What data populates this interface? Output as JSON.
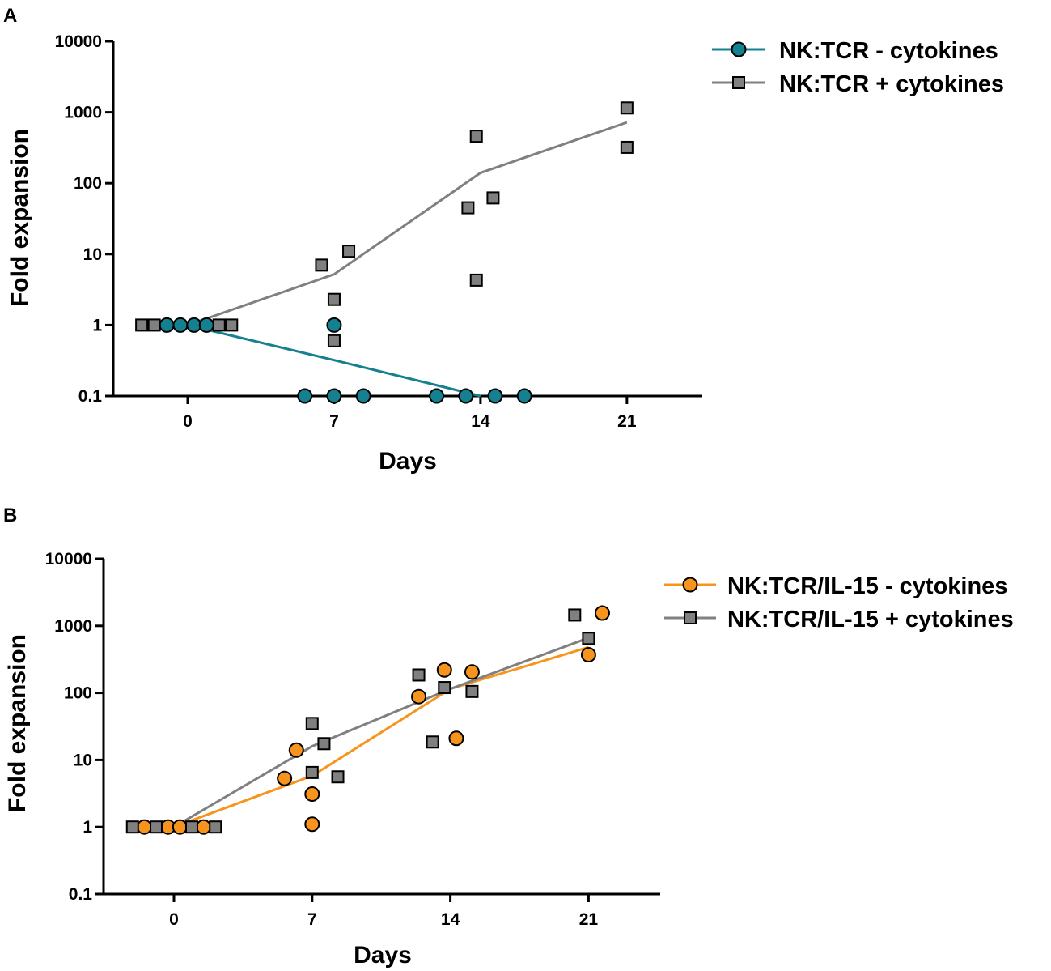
{
  "chart_data": [
    {
      "panel": "A",
      "type": "scatter",
      "xlabel": "Days",
      "ylabel": "Fold expansion",
      "yscale": "log",
      "ylim": [
        0.1,
        10000
      ],
      "xlim": [
        -3,
        24
      ],
      "xticks": [
        "0",
        "7",
        "14",
        "21"
      ],
      "yticks": [
        "0.1",
        "1",
        "10",
        "100",
        "1000",
        "10000"
      ],
      "legend_position": "top-right",
      "series": [
        {
          "name": "NK:TCR - cytokines",
          "color": "#15808f",
          "marker": "circle",
          "line": [
            [
              0,
              1
            ],
            [
              7,
              0.32
            ],
            [
              14,
              0.1
            ]
          ],
          "points": [
            [
              -1,
              1
            ],
            [
              -0.35,
              1
            ],
            [
              0.3,
              1
            ],
            [
              0.9,
              1
            ],
            [
              5.6,
              0.1
            ],
            [
              7,
              0.1
            ],
            [
              8.4,
              0.1
            ],
            [
              7,
              1
            ],
            [
              11.9,
              0.1
            ],
            [
              13.3,
              0.1
            ],
            [
              14.7,
              0.1
            ],
            [
              16.1,
              0.1
            ]
          ]
        },
        {
          "name": "NK:TCR + cytokines",
          "color": "#808080",
          "marker": "square",
          "line": [
            [
              0,
              1
            ],
            [
              7,
              5.2
            ],
            [
              14,
              140
            ],
            [
              21,
              720
            ]
          ],
          "points": [
            [
              -2.2,
              1
            ],
            [
              -1.6,
              1
            ],
            [
              1.5,
              1
            ],
            [
              2.1,
              1
            ],
            [
              6.4,
              7
            ],
            [
              7.7,
              11
            ],
            [
              7,
              2.3
            ],
            [
              7,
              0.6
            ],
            [
              13.4,
              45
            ],
            [
              14.6,
              62
            ],
            [
              13.8,
              460
            ],
            [
              13.8,
              4.3
            ],
            [
              21,
              1150
            ],
            [
              21,
              320
            ]
          ]
        }
      ]
    },
    {
      "panel": "B",
      "type": "scatter",
      "xlabel": "Days",
      "ylabel": "Fold expansion",
      "yscale": "log",
      "ylim": [
        0.1,
        10000
      ],
      "xlim": [
        -3,
        24
      ],
      "xticks": [
        "0",
        "7",
        "14",
        "21"
      ],
      "yticks": [
        "0.1",
        "1",
        "10",
        "100",
        "1000",
        "10000"
      ],
      "legend_position": "top-right",
      "series": [
        {
          "name": "NK:TCR/IL-15 - cytokines",
          "color": "#f7941d",
          "marker": "circle",
          "line": [
            [
              0,
              1
            ],
            [
              7,
              5.8
            ],
            [
              14,
              115
            ],
            [
              21,
              480
            ]
          ],
          "points": [
            [
              -1.5,
              1
            ],
            [
              -0.3,
              1
            ],
            [
              0.3,
              1
            ],
            [
              1.5,
              1
            ],
            [
              5.6,
              5.3
            ],
            [
              6.2,
              14
            ],
            [
              7,
              3.1
            ],
            [
              7,
              1.1
            ],
            [
              12.4,
              88
            ],
            [
              13.7,
              220
            ],
            [
              14.3,
              21
            ],
            [
              15.1,
              205
            ],
            [
              21,
              370
            ],
            [
              21.7,
              1550
            ]
          ]
        },
        {
          "name": "NK:TCR/IL-15 + cytokines",
          "color": "#808080",
          "marker": "square",
          "line": [
            [
              0,
              1
            ],
            [
              7,
              16
            ],
            [
              14,
              115
            ],
            [
              21,
              660
            ]
          ],
          "points": [
            [
              -2.1,
              1
            ],
            [
              -0.9,
              1
            ],
            [
              0.9,
              1
            ],
            [
              2.1,
              1
            ],
            [
              7,
              35
            ],
            [
              7.6,
              17.5
            ],
            [
              7,
              6.5
            ],
            [
              8.3,
              5.6
            ],
            [
              12.4,
              185
            ],
            [
              13.7,
              120
            ],
            [
              15.1,
              105
            ],
            [
              13.1,
              18.5
            ],
            [
              20.3,
              1450
            ],
            [
              21,
              650
            ]
          ]
        }
      ]
    }
  ]
}
